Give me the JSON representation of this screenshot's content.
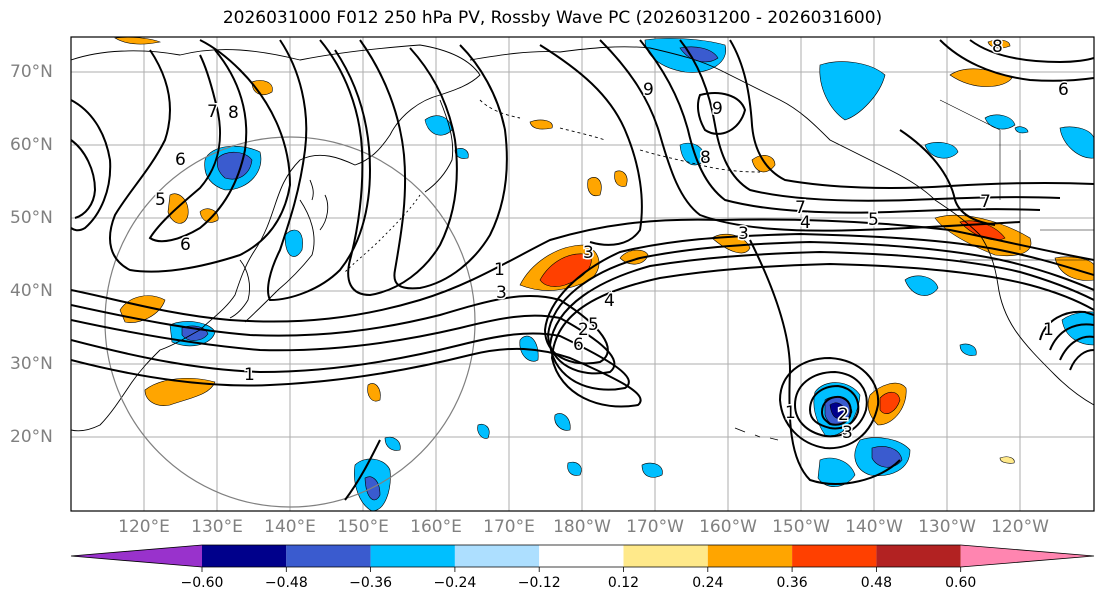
{
  "title": "2026031000 F012 250 hPa PV, Rossby Wave PC (2026031200 - 2026031600)",
  "lat_labels": [
    "70°N",
    "60°N",
    "50°N",
    "40°N",
    "30°N",
    "20°N"
  ],
  "lon_labels": [
    "120°E",
    "130°E",
    "140°E",
    "150°E",
    "160°E",
    "170°E",
    "180°W",
    "170°W",
    "160°W",
    "150°W",
    "140°W",
    "130°W",
    "120°W"
  ],
  "colorbar": {
    "ticks": [
      "−0.60",
      "−0.48",
      "−0.36",
      "−0.24",
      "−0.12",
      "0.12",
      "0.24",
      "0.36",
      "0.48",
      "0.60"
    ],
    "colors": [
      "#9932CC",
      "#00008B",
      "#3A5BCF",
      "#00BFFF",
      "#ADDFFF",
      "#FFFFFF",
      "#FFE98A",
      "#FFA500",
      "#FF4000",
      "#B22222",
      "#FF85B0"
    ]
  },
  "contour_labels": [
    "7",
    "8",
    "6",
    "5",
    "6",
    "1",
    "1",
    "3",
    "2",
    "3",
    "4",
    "5",
    "6",
    "7",
    "4",
    "5",
    "3",
    "7",
    "8",
    "9",
    "9",
    "1",
    "3",
    "2",
    "1",
    "8",
    "6"
  ]
}
